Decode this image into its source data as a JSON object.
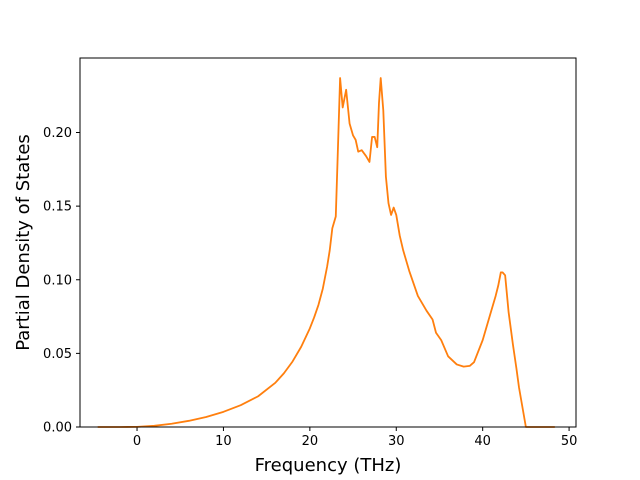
{
  "chart_data": {
    "type": "line",
    "title": "",
    "xlabel": "Frequency (THz)",
    "ylabel": "Partial Density of States",
    "xlim": [
      -6.6,
      50.8
    ],
    "ylim": [
      0.0,
      0.2506
    ],
    "xticks": [
      0,
      10,
      20,
      30,
      40,
      50
    ],
    "yticks": [
      0.0,
      0.05,
      0.1,
      0.15,
      0.2
    ],
    "xtick_labels": [
      "0",
      "10",
      "20",
      "30",
      "40",
      "50"
    ],
    "ytick_labels": [
      "0.00",
      "0.05",
      "0.10",
      "0.15",
      "0.20"
    ],
    "grid": false,
    "legend": "none",
    "series": [
      {
        "color": "#ff7f0e",
        "x": [
          -4.5,
          -2,
          0,
          2,
          4,
          6,
          8,
          10,
          12,
          14,
          16,
          17,
          18,
          19,
          20,
          20.5,
          21,
          21.5,
          22,
          22.3,
          22.6,
          23.0,
          23.2,
          23.5,
          23.8,
          24.2,
          24.6,
          25.0,
          25.3,
          25.6,
          26.0,
          26.5,
          26.9,
          27.2,
          27.5,
          27.8,
          28.0,
          28.2,
          28.5,
          28.8,
          29.1,
          29.4,
          29.7,
          30.0,
          30.4,
          30.8,
          31.5,
          32.5,
          33.5,
          34.2,
          34.6,
          35.2,
          36.0,
          37.0,
          37.8,
          38.5,
          39.0,
          40.0,
          41.0,
          41.5,
          41.8,
          42.1,
          42.3,
          42.6,
          43.0,
          43.5,
          43.9,
          44.2,
          45,
          48.3
        ],
        "y": [
          0.0,
          0.0,
          0.0001,
          0.0008,
          0.0022,
          0.0042,
          0.0068,
          0.0103,
          0.0148,
          0.0208,
          0.03,
          0.0365,
          0.0445,
          0.0545,
          0.067,
          0.0745,
          0.083,
          0.094,
          0.109,
          0.12,
          0.135,
          0.143,
          0.18,
          0.237,
          0.217,
          0.229,
          0.206,
          0.198,
          0.195,
          0.187,
          0.188,
          0.184,
          0.18,
          0.197,
          0.197,
          0.19,
          0.22,
          0.237,
          0.215,
          0.17,
          0.152,
          0.144,
          0.149,
          0.144,
          0.13,
          0.12,
          0.106,
          0.089,
          0.079,
          0.073,
          0.064,
          0.059,
          0.048,
          0.0425,
          0.041,
          0.0415,
          0.044,
          0.059,
          0.079,
          0.089,
          0.096,
          0.105,
          0.105,
          0.103,
          0.078,
          0.056,
          0.04,
          0.027,
          0.0,
          0.0
        ]
      }
    ]
  }
}
